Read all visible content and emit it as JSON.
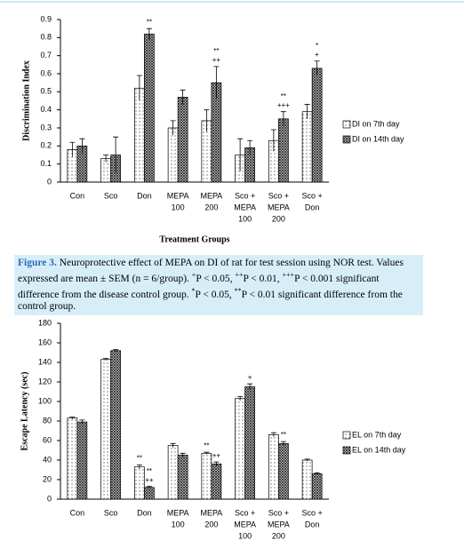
{
  "chart_data": [
    {
      "type": "bar",
      "y_label": "Discrimination Index",
      "x_label": "Treatment Groups",
      "categories": [
        [
          "Con"
        ],
        [
          "Sco"
        ],
        [
          "Don"
        ],
        [
          "MEPA",
          "100"
        ],
        [
          "MEPA",
          "200"
        ],
        [
          "Sco +",
          "MEPA",
          "100"
        ],
        [
          "Sco +",
          "MEPA",
          "200"
        ],
        [
          "Sco +",
          "Don"
        ]
      ],
      "series": [
        {
          "name": "DI on 7th day",
          "color": "#ffffff",
          "values": [
            0.18,
            0.13,
            0.52,
            0.3,
            0.34,
            0.15,
            0.23,
            0.39
          ],
          "errors": [
            0.04,
            0.02,
            0.07,
            0.04,
            0.06,
            0.09,
            0.06,
            0.04
          ],
          "markers": [
            null,
            null,
            null,
            null,
            null,
            null,
            null,
            null
          ]
        },
        {
          "name": "DI on 14th day",
          "color": "#555555",
          "values": [
            0.2,
            0.15,
            0.82,
            0.47,
            0.55,
            0.19,
            0.35,
            0.63
          ],
          "errors": [
            0.04,
            0.1,
            0.03,
            0.04,
            0.09,
            0.04,
            0.04,
            0.04
          ],
          "markers": [
            null,
            null,
            [
              "**"
            ],
            null,
            [
              "**",
              "++"
            ],
            null,
            [
              "**",
              "+++"
            ],
            [
              "*",
              "+"
            ]
          ]
        }
      ],
      "ylim": [
        0,
        0.9
      ],
      "yticks": [
        0,
        0.1,
        0.2,
        0.3,
        0.4,
        0.5,
        0.6,
        0.7,
        0.8,
        0.9
      ],
      "legend": "right"
    },
    {
      "type": "bar",
      "y_label": "Escape Latency (sec)",
      "categories": [
        [
          "Con"
        ],
        [
          "Sco"
        ],
        [
          "Don"
        ],
        [
          "MEPA",
          "100"
        ],
        [
          "MEPA",
          "200"
        ],
        [
          "Sco +",
          "MEPA",
          "100"
        ],
        [
          "Sco +",
          "MEPA",
          "200"
        ],
        [
          "Sco +",
          "Don"
        ]
      ],
      "series": [
        {
          "name": "EL on 7th day",
          "color": "#ffffff",
          "values": [
            83,
            143,
            33,
            55,
            47,
            103,
            66,
            40
          ],
          "errors": [
            1,
            1,
            2,
            2,
            1,
            2,
            2,
            1
          ],
          "markers": [
            null,
            null,
            [
              "**"
            ],
            null,
            [
              "**"
            ],
            null,
            null,
            null
          ]
        },
        {
          "name": "EL on 14th day",
          "color": "#555555",
          "values": [
            79,
            152,
            12,
            45,
            36,
            115,
            57,
            26
          ],
          "errors": [
            2,
            1,
            1,
            2,
            2,
            3,
            2,
            1
          ],
          "markers": [
            null,
            null,
            [
              "**",
              "++"
            ],
            null,
            [
              "++"
            ],
            [
              "+"
            ],
            [
              "**"
            ],
            null
          ]
        }
      ],
      "ylim": [
        0,
        180
      ],
      "yticks": [
        0,
        20,
        40,
        60,
        80,
        100,
        120,
        140,
        160,
        180
      ],
      "legend": "right"
    }
  ],
  "caption": {
    "label": "Figure 3.",
    "parts": [
      {
        "text": " Neuroprotective effect of MEPA on DI of rat for test session using NOR test. Values expressed are mean ± SEM (n = 6/group). "
      },
      {
        "text": "+",
        "sup": true
      },
      {
        "text": "P < 0.05, "
      },
      {
        "text": "++",
        "sup": true
      },
      {
        "text": "P < 0.01, "
      },
      {
        "text": "+++",
        "sup": true
      },
      {
        "text": "P < 0.001 significant difference from the disease control group. "
      },
      {
        "text": "*",
        "sup": true
      },
      {
        "text": "P < 0.05, "
      },
      {
        "text": "**",
        "sup": true
      },
      {
        "text": "P < 0.01 significant difference from the control group."
      }
    ]
  }
}
